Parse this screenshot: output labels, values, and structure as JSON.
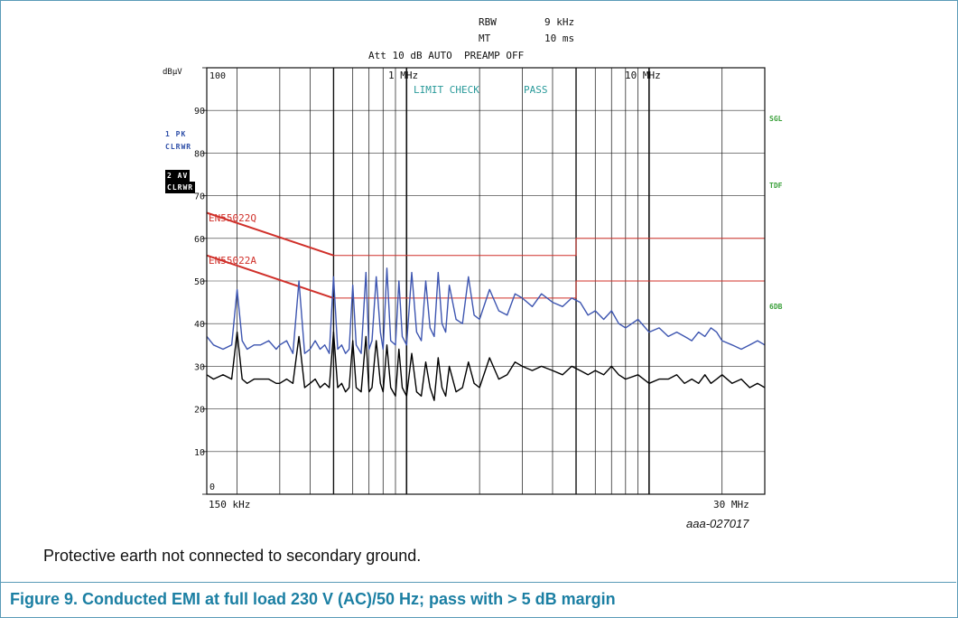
{
  "header": {
    "rbw_label": "RBW",
    "rbw_value": "9 kHz",
    "mt_label": "MT",
    "mt_value": "10 ms",
    "att_line": "Att 10 dB AUTO  PREAMP OFF"
  },
  "sidebar": {
    "trace1_line1": "1 PK",
    "trace1_line2": "CLRWR",
    "trace2_line1": "2 AV",
    "trace2_line2": "CLRWR"
  },
  "right_labels": {
    "sgl": "SGL",
    "tdf": "TDF",
    "sdb": "6DB"
  },
  "plot_texts": {
    "limit_check": "LIMIT CHECK",
    "pass": "PASS",
    "limit_q": "EN55022Q",
    "limit_a": "EN55022A"
  },
  "docid": "aaa-027017",
  "note": "Protective earth not connected to secondary ground.",
  "caption": "Figure 9. Conducted EMI at full load 230 V (AC)/50 Hz; pass with > 5 dB margin",
  "colors": {
    "peak": "#3d55b0",
    "average": "#000000",
    "limit": "#d0302a",
    "info": "#2a9a9a",
    "caption": "#1b7fa3"
  },
  "chart_data": {
    "type": "line",
    "title": "",
    "ylabel": "dBµV",
    "xscale": "log",
    "xlim_hz": [
      150000,
      30000000
    ],
    "ylim": [
      0,
      100
    ],
    "yticks": [
      0,
      10,
      20,
      30,
      40,
      50,
      60,
      70,
      80,
      90,
      100
    ],
    "ytick_labels": [
      "0",
      "10",
      "20",
      "30",
      "40",
      "50",
      "60",
      "70",
      "80",
      "90",
      "100"
    ],
    "xtick_labels": {
      "start": "150 kHz",
      "1mhz": "1 MHz",
      "10mhz": "10 MHz",
      "end": "30 MHz"
    },
    "grid": true,
    "limits": [
      {
        "name": "EN55022Q",
        "points": [
          [
            150000,
            66
          ],
          [
            500000,
            56
          ],
          [
            5000000,
            56
          ],
          [
            5000000,
            60
          ],
          [
            30000000,
            60
          ]
        ]
      },
      {
        "name": "EN55022A",
        "points": [
          [
            150000,
            56
          ],
          [
            500000,
            46
          ],
          [
            5000000,
            46
          ],
          [
            5000000,
            50
          ],
          [
            30000000,
            50
          ]
        ]
      }
    ],
    "series": [
      {
        "trace": "1 PK",
        "freq_hz": [
          150000,
          160000,
          175000,
          190000,
          200000,
          210000,
          220000,
          235000,
          250000,
          270000,
          290000,
          300000,
          320000,
          340000,
          360000,
          380000,
          400000,
          420000,
          440000,
          460000,
          480000,
          500000,
          520000,
          540000,
          560000,
          580000,
          600000,
          620000,
          650000,
          680000,
          700000,
          720000,
          750000,
          780000,
          800000,
          830000,
          860000,
          900000,
          930000,
          960000,
          1000000,
          1050000,
          1100000,
          1150000,
          1200000,
          1250000,
          1300000,
          1350000,
          1400000,
          1450000,
          1500000,
          1600000,
          1700000,
          1800000,
          1900000,
          2000000,
          2200000,
          2400000,
          2600000,
          2800000,
          3000000,
          3300000,
          3600000,
          4000000,
          4400000,
          4800000,
          5200000,
          5600000,
          6000000,
          6500000,
          7000000,
          7500000,
          8000000,
          9000000,
          10000000,
          11000000,
          12000000,
          13000000,
          14000000,
          15000000,
          16000000,
          17000000,
          18000000,
          19000000,
          20000000,
          22000000,
          24000000,
          26000000,
          28000000,
          30000000
        ],
        "values": [
          37,
          35,
          34,
          35,
          48,
          36,
          34,
          35,
          35,
          36,
          34,
          35,
          36,
          33,
          50,
          33,
          34,
          36,
          34,
          35,
          33,
          51,
          34,
          35,
          33,
          34,
          49,
          35,
          33,
          52,
          34,
          36,
          51,
          38,
          34,
          53,
          36,
          35,
          50,
          37,
          35,
          52,
          38,
          36,
          50,
          39,
          37,
          52,
          40,
          38,
          49,
          41,
          40,
          51,
          42,
          41,
          48,
          43,
          42,
          47,
          46,
          44,
          47,
          45,
          44,
          46,
          45,
          42,
          43,
          41,
          43,
          40,
          39,
          41,
          38,
          39,
          37,
          38,
          37,
          36,
          38,
          37,
          39,
          38,
          36,
          35,
          34,
          35,
          36,
          35
        ]
      },
      {
        "trace": "2 AV",
        "freq_hz": [
          150000,
          160000,
          175000,
          190000,
          200000,
          210000,
          220000,
          235000,
          250000,
          270000,
          290000,
          300000,
          320000,
          340000,
          360000,
          380000,
          400000,
          420000,
          440000,
          460000,
          480000,
          500000,
          520000,
          540000,
          560000,
          580000,
          600000,
          620000,
          650000,
          680000,
          700000,
          720000,
          750000,
          780000,
          800000,
          830000,
          860000,
          900000,
          930000,
          960000,
          1000000,
          1050000,
          1100000,
          1150000,
          1200000,
          1250000,
          1300000,
          1350000,
          1400000,
          1450000,
          1500000,
          1600000,
          1700000,
          1800000,
          1900000,
          2000000,
          2200000,
          2400000,
          2600000,
          2800000,
          3000000,
          3300000,
          3600000,
          4000000,
          4400000,
          4800000,
          5200000,
          5600000,
          6000000,
          6500000,
          7000000,
          7500000,
          8000000,
          9000000,
          10000000,
          11000000,
          12000000,
          13000000,
          14000000,
          15000000,
          16000000,
          17000000,
          18000000,
          19000000,
          20000000,
          22000000,
          24000000,
          26000000,
          28000000,
          30000000
        ],
        "values": [
          28,
          27,
          28,
          27,
          38,
          27,
          26,
          27,
          27,
          27,
          26,
          26,
          27,
          26,
          37,
          25,
          26,
          27,
          25,
          26,
          25,
          38,
          25,
          26,
          24,
          25,
          36,
          25,
          24,
          37,
          24,
          25,
          36,
          26,
          24,
          35,
          25,
          23,
          34,
          25,
          23,
          33,
          24,
          23,
          31,
          25,
          22,
          32,
          25,
          23,
          30,
          24,
          25,
          31,
          26,
          25,
          32,
          27,
          28,
          31,
          30,
          29,
          30,
          29,
          28,
          30,
          29,
          28,
          29,
          28,
          30,
          28,
          27,
          28,
          26,
          27,
          27,
          28,
          26,
          27,
          26,
          28,
          26,
          27,
          28,
          26,
          27,
          25,
          26,
          25
        ]
      }
    ]
  }
}
